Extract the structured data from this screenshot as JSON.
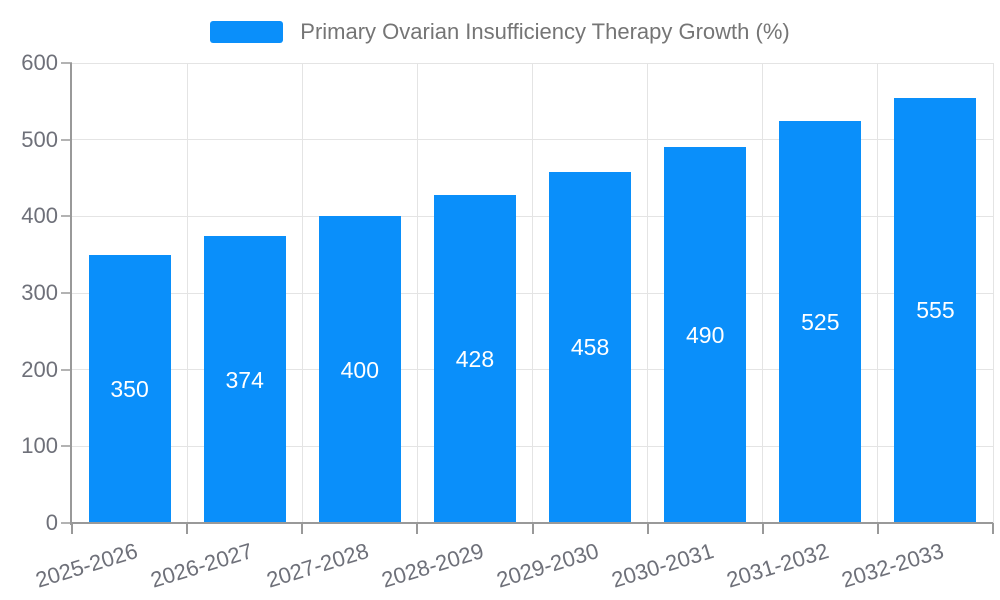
{
  "legend": {
    "label": "Primary Ovarian Insufficiency Therapy Growth (%)"
  },
  "chart_data": {
    "type": "bar",
    "title": "Primary Ovarian Insufficiency Therapy Growth (%)",
    "categories": [
      "2025-2026",
      "2026-2027",
      "2027-2028",
      "2028-2029",
      "2029-2030",
      "2030-2031",
      "2031-2032",
      "2032-2033"
    ],
    "values": [
      350,
      374,
      400,
      428,
      458,
      490,
      525,
      555
    ],
    "xlabel": "",
    "ylabel": "",
    "ylim": [
      0,
      600
    ],
    "yticks": [
      0,
      100,
      200,
      300,
      400,
      500,
      600
    ],
    "grid": true,
    "legend_position": "top-center",
    "bar_color": "#0A8FFA",
    "value_label_color": "#FFFFFF",
    "axis_label_color": "#6E7079",
    "grid_color": "#E4E4E4",
    "axis_line_color": "#999999",
    "legend_text_color": "#757575"
  }
}
